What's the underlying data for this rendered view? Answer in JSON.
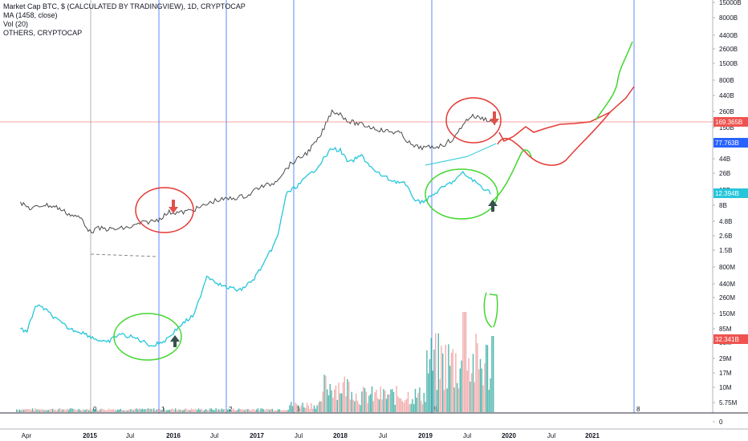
{
  "legend": {
    "line1": "Market Cap BTC, $ (CALCULATED BY TRADINGVIEW), 1D, CRYPTOCAP",
    "line2": "MA (1458, close)",
    "line3": "Vol (20)",
    "line4": "OTHERS, CRYPTOCAP"
  },
  "colors": {
    "btc": "#4a4a4a",
    "others": "#26c6da",
    "ma": "#26c6da",
    "red_line": "#ef5350",
    "ma_tag": "#2962ff",
    "grid_vertical": "#2962ff",
    "annotation_red": "#e53935",
    "annotation_green": "#43d62f",
    "volume_up": "#26a69a",
    "volume_down": "#ef9a9a"
  },
  "chart_data": {
    "type": "line",
    "scale": "log",
    "x_ticks": [
      "Apr",
      "2015",
      "Jul",
      "2016",
      "Jul",
      "2017",
      "Jul",
      "2018",
      "Jul",
      "2019",
      "Jul",
      "2020",
      "Jul",
      "2021"
    ],
    "y_ticks": [
      "15000B",
      "8000B",
      "4400B",
      "2600B",
      "1500B",
      "800B",
      "440B",
      "260B",
      "150B",
      "85B",
      "44B",
      "26B",
      "15B",
      "8B",
      "4.8B",
      "2.6B",
      "1.5B",
      "800M",
      "440M",
      "260M",
      "150M",
      "85M",
      "50M",
      "29M",
      "17M",
      "10M",
      "5.75M",
      "0"
    ],
    "price_tags": [
      {
        "label": "169.365B",
        "color": "#ef5350"
      },
      {
        "label": "77.763B",
        "color": "#2962ff"
      },
      {
        "label": "12.394B",
        "color": "#26c6da"
      },
      {
        "label": "32.341B",
        "color": "#ef5350"
      }
    ],
    "cycle_markers": [
      "0",
      "1",
      "2",
      "3",
      "5",
      "8"
    ],
    "series": [
      {
        "name": "Market Cap BTC",
        "points": [
          [
            2014.17,
            8.6
          ],
          [
            2014.3,
            7.0
          ],
          [
            2014.45,
            8.2
          ],
          [
            2014.6,
            7.5
          ],
          [
            2014.75,
            5.8
          ],
          [
            2014.9,
            4.9
          ],
          [
            2015.0,
            3.0
          ],
          [
            2015.1,
            3.4
          ],
          [
            2015.3,
            3.3
          ],
          [
            2015.5,
            3.6
          ],
          [
            2015.6,
            4.1
          ],
          [
            2015.8,
            4.6
          ],
          [
            2015.95,
            6.2
          ],
          [
            2016.1,
            6.1
          ],
          [
            2016.3,
            7.2
          ],
          [
            2016.5,
            9.5
          ],
          [
            2016.7,
            10.3
          ],
          [
            2016.9,
            11.5
          ],
          [
            2017.0,
            15.0
          ],
          [
            2017.2,
            18
          ],
          [
            2017.4,
            36
          ],
          [
            2017.6,
            55
          ],
          [
            2017.75,
            95
          ],
          [
            2017.9,
            260
          ],
          [
            2018.0,
            230
          ],
          [
            2018.1,
            175
          ],
          [
            2018.3,
            150
          ],
          [
            2018.5,
            125
          ],
          [
            2018.7,
            115
          ],
          [
            2018.85,
            70
          ],
          [
            2019.0,
            66
          ],
          [
            2019.2,
            72
          ],
          [
            2019.35,
            95
          ],
          [
            2019.45,
            160
          ],
          [
            2019.55,
            215
          ],
          [
            2019.7,
            195
          ],
          [
            2019.8,
            175
          ],
          [
            2019.85,
            155
          ]
        ]
      },
      {
        "name": "OTHERS",
        "points": [
          [
            2014.17,
            0.085
          ],
          [
            2014.25,
            0.075
          ],
          [
            2014.35,
            0.2
          ],
          [
            2014.45,
            0.18
          ],
          [
            2014.6,
            0.12
          ],
          [
            2014.75,
            0.085
          ],
          [
            2014.9,
            0.075
          ],
          [
            2015.05,
            0.06
          ],
          [
            2015.2,
            0.05
          ],
          [
            2015.35,
            0.07
          ],
          [
            2015.55,
            0.06
          ],
          [
            2015.75,
            0.045
          ],
          [
            2015.9,
            0.055
          ],
          [
            2016.1,
            0.1
          ],
          [
            2016.25,
            0.14
          ],
          [
            2016.4,
            0.6
          ],
          [
            2016.6,
            0.4
          ],
          [
            2016.8,
            0.35
          ],
          [
            2016.95,
            0.5
          ],
          [
            2017.1,
            1.0
          ],
          [
            2017.25,
            2.5
          ],
          [
            2017.35,
            12
          ],
          [
            2017.5,
            17
          ],
          [
            2017.7,
            30
          ],
          [
            2017.9,
            65
          ],
          [
            2018.0,
            60
          ],
          [
            2018.1,
            38
          ],
          [
            2018.25,
            50
          ],
          [
            2018.4,
            28
          ],
          [
            2018.6,
            20
          ],
          [
            2018.75,
            18
          ],
          [
            2018.9,
            9
          ],
          [
            2019.0,
            9.5
          ],
          [
            2019.2,
            15
          ],
          [
            2019.35,
            20
          ],
          [
            2019.45,
            26
          ],
          [
            2019.55,
            21
          ],
          [
            2019.7,
            15
          ],
          [
            2019.8,
            12.4
          ]
        ]
      },
      {
        "name": "MA (1458, close)",
        "points": [
          [
            2019.0,
            35
          ],
          [
            2019.5,
            48
          ],
          [
            2019.85,
            78
          ]
        ]
      }
    ]
  }
}
